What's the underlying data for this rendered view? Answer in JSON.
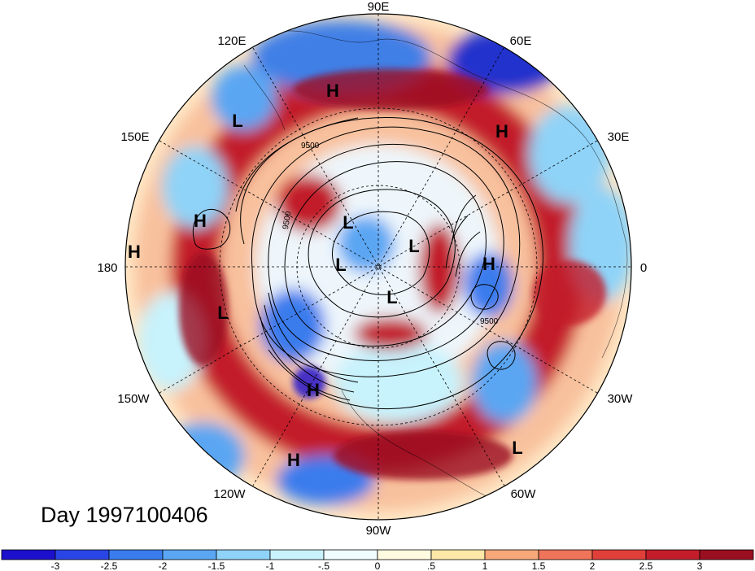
{
  "lon_labels": {
    "e90": "90E",
    "e120": "120E",
    "e60": "60E",
    "e150": "150E",
    "e30": "30E",
    "d180": "180",
    "d0": "0",
    "w150": "150W",
    "w30": "30W",
    "w120": "120W",
    "w60": "60W",
    "w90": "90W"
  },
  "pressure_systems": {
    "h1": "H",
    "h2": "H",
    "h3": "H",
    "h4": "H",
    "h5": "H",
    "h6": "H",
    "h7": "H",
    "l1": "L",
    "l2": "L",
    "l3": "L",
    "l4": "L",
    "l5": "L",
    "l6": "L",
    "l7": "L"
  },
  "contour_labels": {
    "c1": "9500",
    "c2": "9500",
    "c3": "9500"
  },
  "title": "Day 1997100406",
  "colorbar": {
    "colors": [
      "#1d10cc",
      "#2a45e6",
      "#3a7ced",
      "#5aa6f3",
      "#8fd3f8",
      "#c8f2fc",
      "#f0fcfe",
      "#fffbe0",
      "#fde8a8",
      "#f6a878",
      "#ef7459",
      "#e03f3a",
      "#c31d2c",
      "#9a0f20"
    ],
    "ticks": [
      "-3",
      "-2.5",
      "-2",
      "-1.5",
      "-1",
      "-.5",
      "0",
      ".5",
      "1",
      "1.5",
      "2",
      "2.5",
      "3"
    ]
  }
}
